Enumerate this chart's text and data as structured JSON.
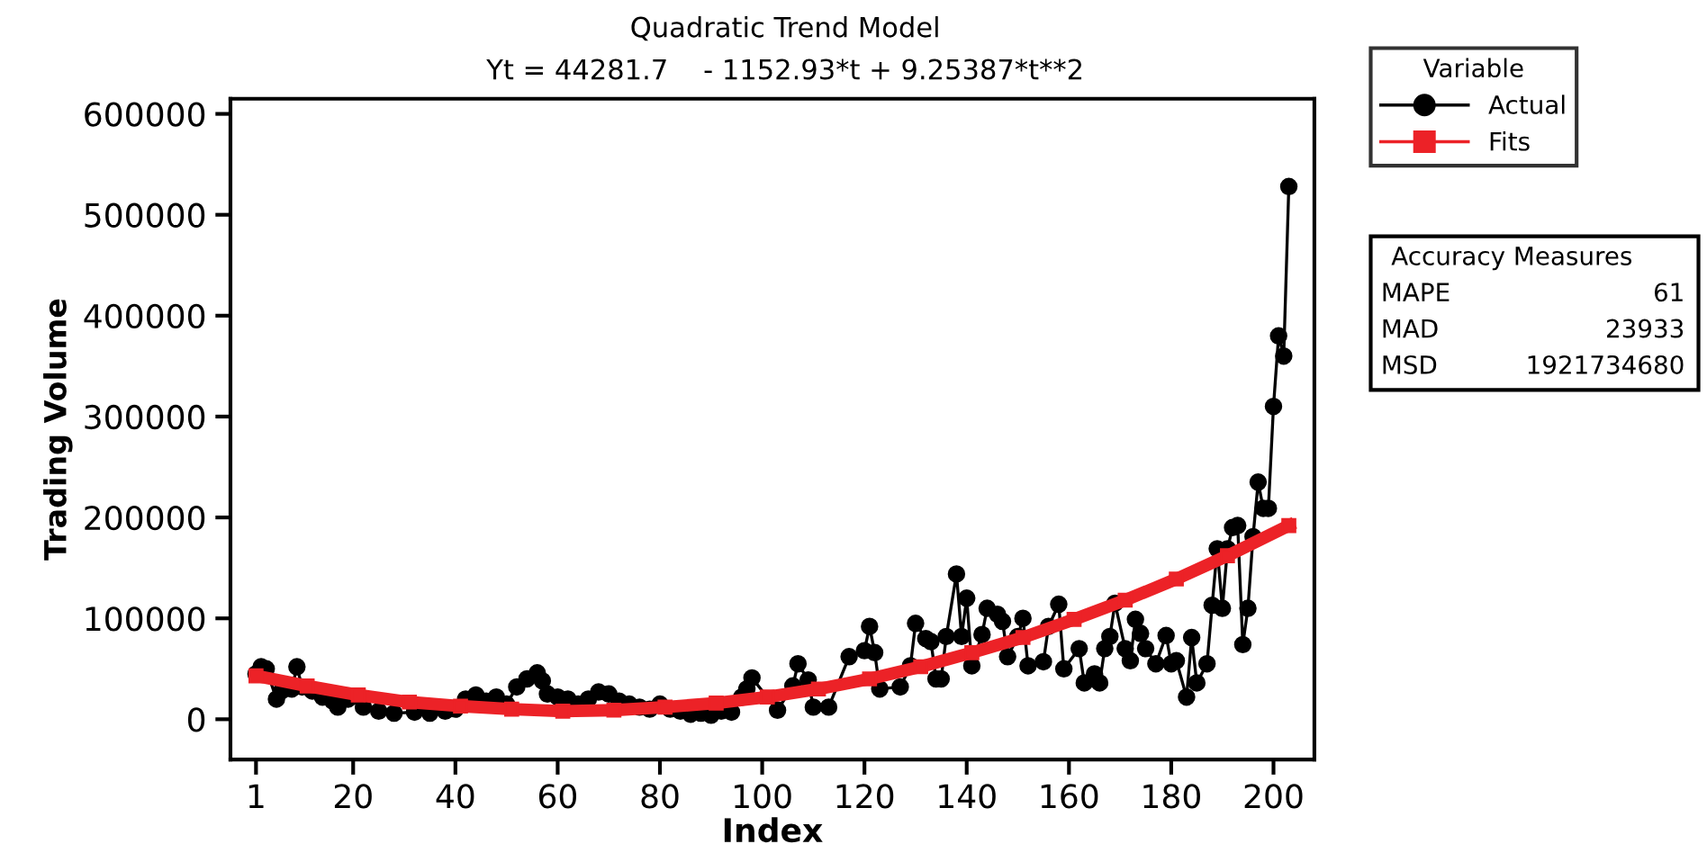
{
  "chart_data": {
    "type": "line",
    "title": "Quadratic Trend Model",
    "subtitle": "Yt = 44281.7    - 1152.93*t + 9.25387*t**2",
    "xlabel": "Index",
    "ylabel": "Trading Volume",
    "legend_title": "Variable",
    "xlim": [
      -4,
      208
    ],
    "xticks": [
      1,
      20,
      40,
      60,
      80,
      100,
      120,
      140,
      160,
      180,
      200
    ],
    "ylim": [
      -40000,
      615000
    ],
    "yticks": [
      0,
      100000,
      200000,
      300000,
      400000,
      500000,
      600000
    ],
    "grid": false,
    "legend": "top right",
    "line_style": "solid",
    "series": [
      {
        "name": "Actual",
        "color": "#000000",
        "marker": "circle",
        "x": [
          1,
          2,
          3,
          5,
          6,
          8,
          9,
          10,
          12,
          14,
          16,
          17,
          19,
          22,
          25,
          28,
          32,
          35,
          38,
          40,
          42,
          44,
          46,
          48,
          50,
          52,
          54,
          56,
          57,
          58,
          60,
          62,
          64,
          66,
          68,
          70,
          72,
          74,
          76,
          78,
          80,
          82,
          84,
          86,
          88,
          90,
          92,
          94,
          96,
          97,
          98,
          103,
          106,
          107,
          109,
          110,
          113,
          117,
          120,
          121,
          122,
          123,
          127,
          129,
          130,
          132,
          133,
          134,
          135,
          136,
          138,
          139,
          140,
          141,
          143,
          144,
          146,
          147,
          148,
          150,
          151,
          152,
          155,
          156,
          158,
          159,
          162,
          163,
          165,
          166,
          167,
          168,
          169,
          171,
          172,
          173,
          174,
          175,
          177,
          179,
          180,
          181,
          183,
          184,
          185,
          187,
          188,
          189,
          190,
          191,
          192,
          193,
          194,
          195,
          196,
          197,
          198,
          199,
          200,
          201,
          202,
          203
        ],
        "values": [
          45000,
          52000,
          50000,
          20000,
          28000,
          30000,
          52000,
          32000,
          28000,
          22000,
          18000,
          12000,
          20000,
          12000,
          8000,
          6000,
          7000,
          6000,
          8000,
          10000,
          20000,
          24000,
          18000,
          22000,
          15000,
          32000,
          40000,
          46000,
          38000,
          25000,
          22000,
          20000,
          15000,
          20000,
          27000,
          25000,
          18000,
          15000,
          12000,
          10000,
          15000,
          10000,
          8000,
          5000,
          6000,
          4000,
          8000,
          7000,
          22000,
          30000,
          41000,
          9000,
          33000,
          55000,
          39000,
          12000,
          12000,
          62000,
          68000,
          92000,
          66000,
          30000,
          32000,
          53000,
          95000,
          80000,
          77000,
          40000,
          40000,
          82000,
          144000,
          82000,
          120000,
          53000,
          84000,
          110000,
          104000,
          97000,
          62000,
          82000,
          100000,
          53000,
          57000,
          92000,
          114000,
          50000,
          70000,
          36000,
          45000,
          36000,
          70000,
          82000,
          115000,
          70000,
          58000,
          99000,
          85000,
          70000,
          55000,
          83000,
          55000,
          58000,
          22000,
          81000,
          36000,
          55000,
          113000,
          169000,
          110000,
          169000,
          190000,
          192000,
          74000,
          110000,
          181000,
          235000,
          209000,
          209000,
          310000,
          380000,
          360000,
          528000
        ]
      },
      {
        "name": "Fits",
        "color": "#ec2227",
        "marker": "square",
        "x": [
          1,
          11,
          21,
          31,
          41,
          51,
          61,
          71,
          81,
          91,
          101,
          111,
          121,
          131,
          141,
          151,
          161,
          171,
          181,
          191,
          203
        ],
        "values": [
          43000,
          33000,
          24000,
          17000,
          13000,
          10000,
          8000,
          9000,
          12000,
          16000,
          22000,
          30000,
          40000,
          52000,
          66000,
          81000,
          99000,
          118000,
          139000,
          162000,
          192000
        ]
      }
    ],
    "annotations": [
      "Accuracy Measures",
      "MAPE",
      "61",
      "MAD",
      "23933",
      "MSD",
      "1921734680"
    ]
  }
}
